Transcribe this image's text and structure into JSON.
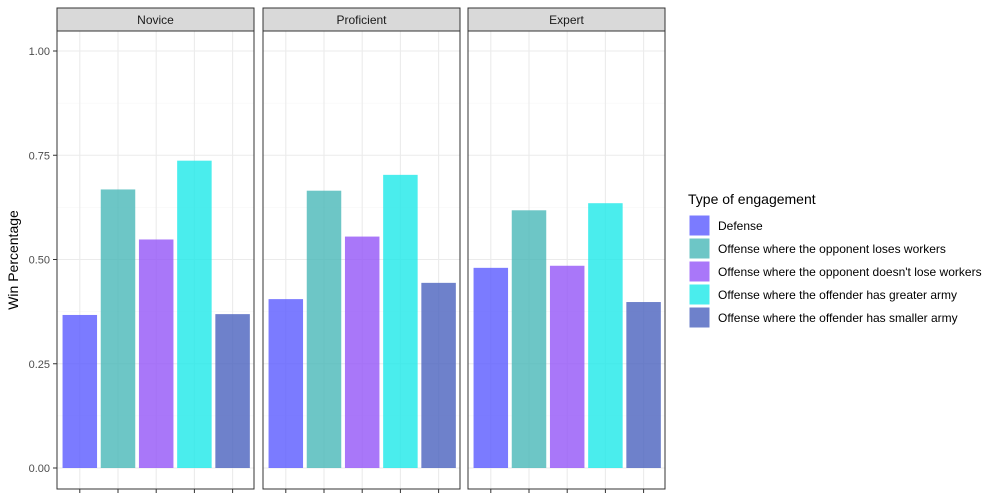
{
  "chart_data": {
    "type": "bar",
    "facets": [
      "Novice",
      "Proficient",
      "Expert"
    ],
    "series": [
      {
        "name": "Defense",
        "color": "#5a5aff",
        "values": [
          0.367,
          0.405,
          0.48
        ]
      },
      {
        "name": "Offense where the opponent loses workers",
        "color": "#48b8b8",
        "values": [
          0.668,
          0.665,
          0.618
        ]
      },
      {
        "name": "Offense where the opponent doesn't lose workers",
        "color": "#9455f7",
        "values": [
          0.548,
          0.555,
          0.485
        ]
      },
      {
        "name": "Offense where the offender has greater army",
        "color": "#1de8e8",
        "values": [
          0.737,
          0.703,
          0.635
        ]
      },
      {
        "name": "Offense where the offender has smaller army",
        "color": "#4a62be",
        "values": [
          0.369,
          0.444,
          0.398
        ]
      }
    ],
    "bar_opacity": 0.8,
    "ylabel": "Win Percentage",
    "xlabel": "",
    "ylim": [
      0,
      1.0
    ],
    "yticks": [
      "0.00",
      "0.25",
      "0.50",
      "0.75",
      "1.00"
    ],
    "x_tick_labels": "none",
    "grid": true,
    "legend": {
      "title": "Type of engagement",
      "position": "right"
    }
  }
}
